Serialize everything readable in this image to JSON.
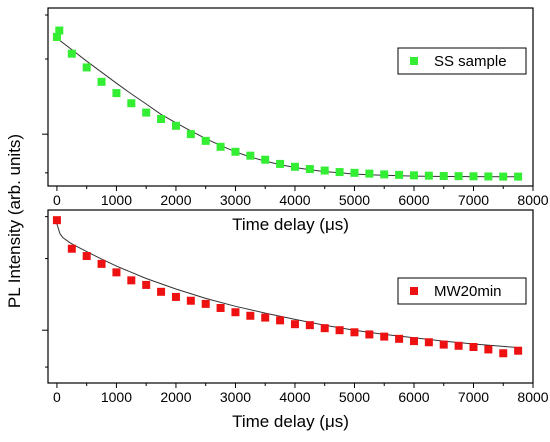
{
  "ylabel": "PL Intensity (arb. units)",
  "colors": {
    "ss": "#33ee33",
    "mw": "#ee1111",
    "fit": "#333333"
  },
  "chart_data": [
    {
      "type": "scatter",
      "xlabel": "Time delay (μs)",
      "ylabel": "PL Intensity (arb. units)",
      "xlim": [
        -150,
        8000
      ],
      "ylim": [
        0.62,
        3.2
      ],
      "yscale": "log",
      "xticks": [
        "0",
        "1000",
        "2000",
        "3000",
        "4000",
        "5000",
        "6000",
        "7000",
        "8000"
      ],
      "legend": {
        "position": "top-right",
        "marker": "square"
      },
      "series": [
        {
          "name": "SS sample",
          "x": [
            0,
            40,
            250,
            500,
            750,
            1000,
            1250,
            1500,
            1750,
            2000,
            2250,
            2500,
            2750,
            3000,
            3250,
            3500,
            3750,
            4000,
            4250,
            4500,
            4750,
            5000,
            5250,
            5500,
            5750,
            6000,
            6250,
            6500,
            6750,
            7000,
            7250,
            7500,
            7750
          ],
          "y": [
            2.45,
            2.6,
            2.1,
            1.85,
            1.62,
            1.46,
            1.33,
            1.22,
            1.15,
            1.08,
            1.0,
            0.94,
            0.89,
            0.85,
            0.82,
            0.79,
            0.76,
            0.74,
            0.725,
            0.715,
            0.705,
            0.7,
            0.695,
            0.69,
            0.687,
            0.684,
            0.682,
            0.68,
            0.679,
            0.678,
            0.677,
            0.676,
            0.676
          ]
        }
      ],
      "fit": {
        "x": [
          0,
          250,
          500,
          750,
          1000,
          1250,
          1500,
          1750,
          2000,
          2250,
          2500,
          2750,
          3000,
          3250,
          3500,
          3750,
          4000,
          4250,
          4500,
          4750,
          5000,
          5500,
          6000,
          6500,
          7000,
          7500,
          7750
        ],
        "y": [
          2.42,
          2.18,
          1.96,
          1.77,
          1.6,
          1.45,
          1.32,
          1.2,
          1.11,
          1.03,
          0.96,
          0.9,
          0.85,
          0.81,
          0.78,
          0.755,
          0.735,
          0.72,
          0.708,
          0.7,
          0.692,
          0.684,
          0.679,
          0.677,
          0.676,
          0.675,
          0.675
        ]
      }
    },
    {
      "type": "scatter",
      "xlabel": "Time delay (μs)",
      "ylabel": "PL Intensity (arb. units)",
      "xlim": [
        -150,
        8000
      ],
      "ylim": [
        0.6,
        3.2
      ],
      "yscale": "log",
      "xticks": [
        "0",
        "1000",
        "2000",
        "3000",
        "4000",
        "5000",
        "6000",
        "7000",
        "8000"
      ],
      "legend": {
        "position": "top-right",
        "marker": "square"
      },
      "series": [
        {
          "name": "MW20min",
          "x": [
            0,
            250,
            500,
            750,
            1000,
            1250,
            1500,
            1750,
            2000,
            2250,
            2500,
            2750,
            3000,
            3250,
            3500,
            3750,
            4000,
            4250,
            4500,
            4750,
            5000,
            5250,
            5500,
            5750,
            6000,
            6250,
            6500,
            6750,
            7000,
            7250,
            7500,
            7750
          ],
          "y": [
            2.9,
            2.2,
            2.05,
            1.9,
            1.75,
            1.62,
            1.55,
            1.45,
            1.38,
            1.33,
            1.29,
            1.24,
            1.19,
            1.15,
            1.13,
            1.1,
            1.06,
            1.05,
            1.02,
            1.0,
            0.98,
            0.96,
            0.94,
            0.92,
            0.9,
            0.89,
            0.87,
            0.86,
            0.85,
            0.83,
            0.8,
            0.82
          ]
        }
      ],
      "fit": {
        "x": [
          0,
          50,
          100,
          200,
          300,
          500,
          750,
          1000,
          1500,
          2000,
          2500,
          3000,
          3500,
          4000,
          4500,
          5000,
          5500,
          6000,
          6500,
          7000,
          7500,
          7750
        ],
        "y": [
          2.8,
          2.55,
          2.45,
          2.35,
          2.27,
          2.14,
          1.99,
          1.86,
          1.65,
          1.49,
          1.36,
          1.26,
          1.18,
          1.11,
          1.05,
          1.0,
          0.96,
          0.93,
          0.9,
          0.875,
          0.855,
          0.845
        ]
      }
    }
  ]
}
